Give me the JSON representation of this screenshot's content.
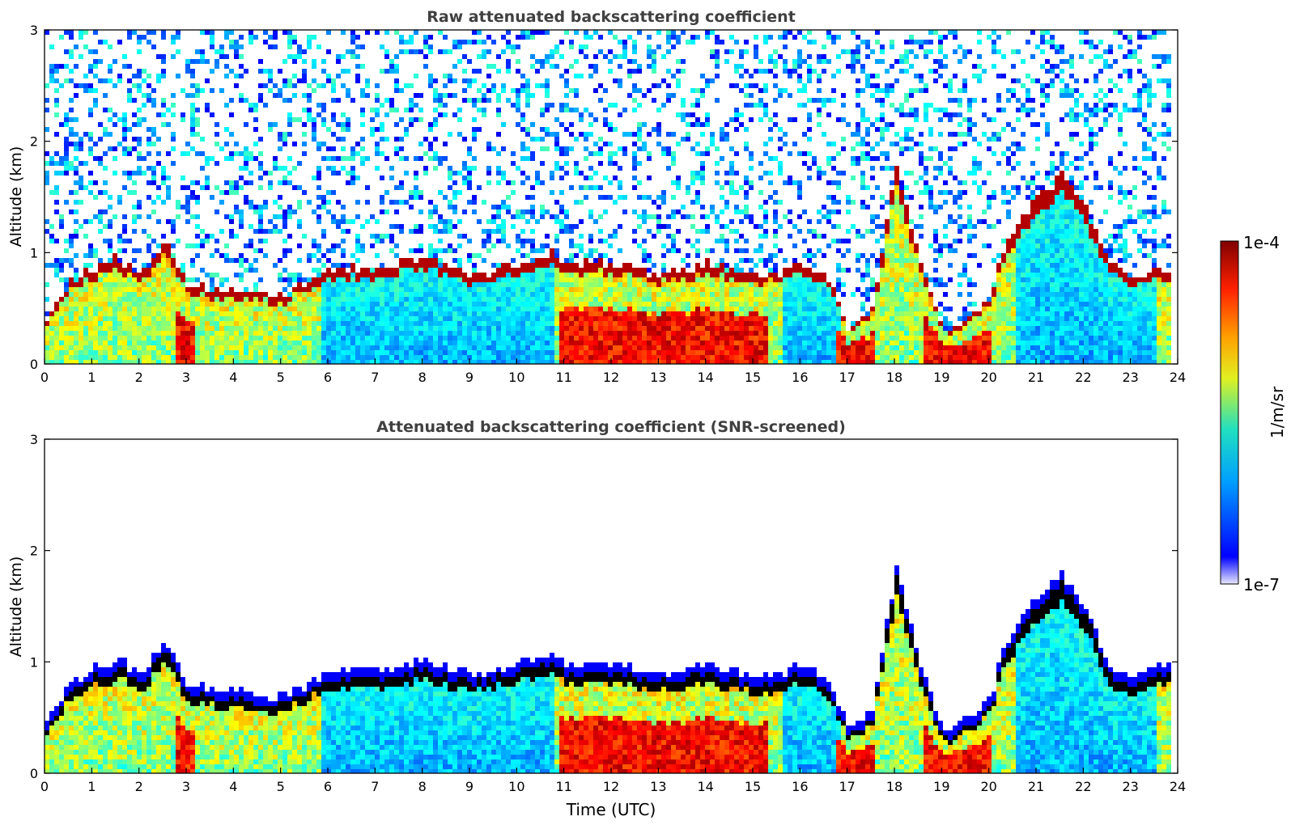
{
  "figure": {
    "colorbar": {
      "label": "1/m/sr",
      "max_label": "1e-4",
      "min_label": "1e-7",
      "scale": "log",
      "range": [
        1e-07,
        0.0001
      ],
      "colormap": "jet"
    },
    "xlabel": "Time (UTC)"
  },
  "chart_data": [
    {
      "type": "heatmap",
      "title": "Raw attenuated backscattering coefficient",
      "xlabel": "",
      "ylabel": "Altitude (km)",
      "xlim": [
        0,
        24
      ],
      "ylim": [
        0,
        3
      ],
      "xticks": [
        "0",
        "1",
        "2",
        "3",
        "4",
        "5",
        "6",
        "7",
        "8",
        "9",
        "10",
        "11",
        "12",
        "13",
        "14",
        "15",
        "16",
        "17",
        "18",
        "19",
        "20",
        "21",
        "22",
        "23",
        "24"
      ],
      "yticks": [
        "0",
        "1",
        "2",
        "3"
      ],
      "screened": false,
      "grid": false,
      "boundary_layer_top_km": [
        [
          0,
          0.4
        ],
        [
          0.5,
          0.75
        ],
        [
          1,
          0.85
        ],
        [
          1.5,
          0.95
        ],
        [
          2,
          0.8
        ],
        [
          2.5,
          1.1
        ],
        [
          3,
          0.7
        ],
        [
          4,
          0.65
        ],
        [
          5,
          0.6
        ],
        [
          6,
          0.85
        ],
        [
          7,
          0.85
        ],
        [
          8,
          0.95
        ],
        [
          9,
          0.8
        ],
        [
          10,
          0.9
        ],
        [
          10.7,
          1.0
        ],
        [
          11,
          0.9
        ],
        [
          12,
          0.9
        ],
        [
          13,
          0.8
        ],
        [
          14,
          0.9
        ],
        [
          15,
          0.8
        ],
        [
          15.5,
          0.8
        ],
        [
          16,
          0.9
        ],
        [
          16.5,
          0.8
        ],
        [
          17,
          0.3
        ],
        [
          17.5,
          0.5
        ],
        [
          18,
          1.8
        ],
        [
          18.5,
          0.9
        ],
        [
          19,
          0.3
        ],
        [
          19.5,
          0.4
        ],
        [
          20,
          0.6
        ],
        [
          20.3,
          1.1
        ],
        [
          21,
          1.5
        ],
        [
          21.5,
          1.7
        ],
        [
          22,
          1.4
        ],
        [
          22.5,
          0.9
        ],
        [
          23,
          0.75
        ],
        [
          23.5,
          0.9
        ],
        [
          23.8,
          0.85
        ]
      ]
    },
    {
      "type": "heatmap",
      "title": "Attenuated backscattering coefficient (SNR-screened)",
      "xlabel": "Time (UTC)",
      "ylabel": "Altitude (km)",
      "xlim": [
        0,
        24
      ],
      "ylim": [
        0,
        3
      ],
      "xticks": [
        "0",
        "1",
        "2",
        "3",
        "4",
        "5",
        "6",
        "7",
        "8",
        "9",
        "10",
        "11",
        "12",
        "13",
        "14",
        "15",
        "16",
        "17",
        "18",
        "19",
        "20",
        "21",
        "22",
        "23",
        "24"
      ],
      "yticks": [
        "0",
        "1",
        "2",
        "3"
      ],
      "screened": true,
      "grid": false
    }
  ]
}
